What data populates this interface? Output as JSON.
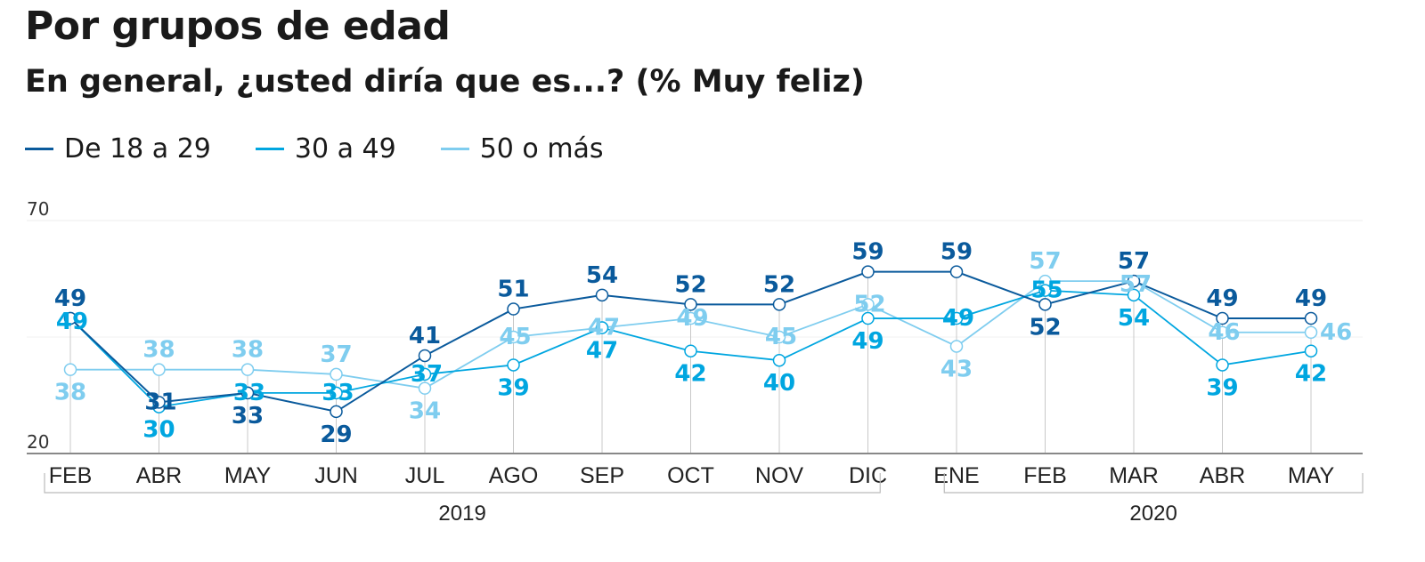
{
  "title": "Por grupos de edad",
  "subtitle": "En general, ¿usted diría que es...? (% Muy feliz)",
  "legend": [
    {
      "name": "De 18 a 29",
      "color": "#0a5a9c"
    },
    {
      "name": "30 a 49",
      "color": "#00a6e0"
    },
    {
      "name": "50 o más",
      "color": "#7fcdef"
    }
  ],
  "chart_data": {
    "type": "line",
    "title": "Por grupos de edad",
    "subtitle": "En general, ¿usted diría que es...? (% Muy feliz)",
    "x": [
      "FEB",
      "ABR",
      "MAY",
      "JUN",
      "JUL",
      "AGO",
      "SEP",
      "OCT",
      "NOV",
      "DIC",
      "ENE",
      "FEB",
      "MAR",
      "ABR",
      "MAY"
    ],
    "year_groups": [
      {
        "label": "2019",
        "from": 0,
        "to": 9
      },
      {
        "label": "2020",
        "from": 10,
        "to": 14
      }
    ],
    "ylim": [
      20,
      70
    ],
    "yticks": [
      20,
      70
    ],
    "grid": true,
    "legend_position": "top-left",
    "series": [
      {
        "name": "De 18 a 29",
        "color": "#0a5a9c",
        "values": [
          49,
          31,
          33,
          29,
          41,
          51,
          54,
          52,
          52,
          59,
          59,
          52,
          57,
          49,
          49
        ]
      },
      {
        "name": "30 a 49",
        "color": "#00a6e0",
        "values": [
          49,
          30,
          33,
          33,
          37,
          39,
          47,
          42,
          40,
          49,
          49,
          55,
          54,
          39,
          42
        ]
      },
      {
        "name": "50 o más",
        "color": "#7fcdef",
        "values": [
          38,
          38,
          38,
          37,
          34,
          45,
          47,
          49,
          45,
          52,
          43,
          57,
          57,
          46,
          46
        ]
      }
    ]
  }
}
